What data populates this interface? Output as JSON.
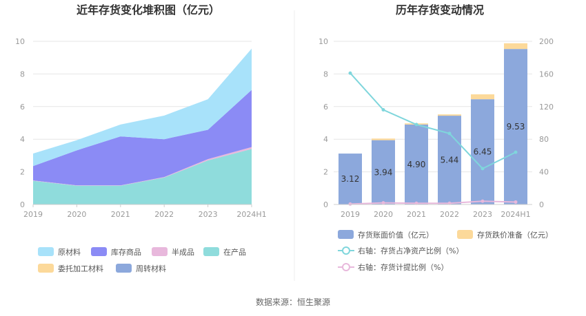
{
  "source_text": "数据来源：恒生聚源",
  "chart_data": [
    {
      "type": "area",
      "title": "近年存货变化堆积图（亿元）",
      "x": [
        "2019",
        "2020",
        "2021",
        "2022",
        "2023",
        "2024H1"
      ],
      "ylim": [
        0,
        10
      ],
      "yticks": [
        "0",
        "2",
        "4",
        "6",
        "8",
        "10"
      ],
      "stacked": true,
      "grid": true,
      "legend_position": "bottom",
      "series": [
        {
          "name": "在产品",
          "color": "#8fdcdc",
          "values": [
            1.45,
            1.15,
            1.15,
            1.65,
            2.7,
            3.4
          ]
        },
        {
          "name": "半成品",
          "color": "#e8b8dc",
          "values": [
            0.02,
            0.02,
            0.02,
            0.03,
            0.08,
            0.12
          ]
        },
        {
          "name": "库存商品",
          "color": "#8b8bf5",
          "values": [
            0.88,
            2.15,
            3.0,
            2.32,
            1.8,
            3.5
          ]
        },
        {
          "name": "原材料",
          "color": "#a8e2fa",
          "values": [
            0.77,
            0.62,
            0.73,
            1.45,
            1.87,
            2.53
          ]
        },
        {
          "name": "委托加工材料",
          "color": "#fcd99a",
          "values": [
            0,
            0,
            0,
            0,
            0,
            0
          ]
        },
        {
          "name": "周转材料",
          "color": "#8ca8dc",
          "values": [
            0,
            0,
            0,
            0,
            0,
            0
          ]
        }
      ],
      "legend": [
        "原材料",
        "库存商品",
        "半成品",
        "在产品",
        "委托加工材料",
        "周转材料"
      ]
    },
    {
      "type": "bar",
      "title": "历年存货变动情况",
      "x": [
        "2019",
        "2020",
        "2021",
        "2022",
        "2023",
        "2024H1"
      ],
      "ylim": [
        0,
        10
      ],
      "yticks": [
        "0",
        "2",
        "4",
        "6",
        "8",
        "10"
      ],
      "y2lim": [
        0,
        200
      ],
      "y2ticks": [
        "0",
        "40",
        "80",
        "120",
        "160",
        "200"
      ],
      "stacked": true,
      "grid": true,
      "legend_position": "bottom",
      "bars": [
        {
          "name": "存货账面价值（亿元）",
          "color": "#8ca8dc",
          "values": [
            3.12,
            3.94,
            4.9,
            5.44,
            6.45,
            9.53
          ],
          "labels": [
            "3.12",
            "3.94",
            "4.90",
            "5.44",
            "6.45",
            "9.53"
          ]
        },
        {
          "name": "存货跌价准备（亿元）",
          "color": "#fcd99a",
          "values": [
            0,
            0.1,
            0.07,
            0.08,
            0.3,
            0.35
          ]
        }
      ],
      "lines": [
        {
          "name": "右轴：存货占净资产比例（%）",
          "color": "#7fd6dc",
          "values": [
            161,
            116,
            98,
            87,
            44,
            64
          ]
        },
        {
          "name": "右轴：存货计提比例（%）",
          "color": "#e8b8dc",
          "values": [
            0.5,
            2,
            1.5,
            1.5,
            4,
            3
          ]
        }
      ]
    }
  ]
}
